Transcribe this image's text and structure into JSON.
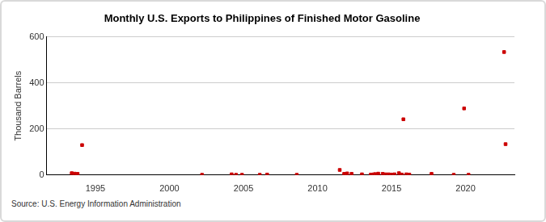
{
  "chart_data": {
    "type": "scatter",
    "title": "Monthly U.S. Exports to Philippines of Finished Motor Gasoline",
    "y_label": "Thousand Barrels",
    "source": "Source: U.S. Energy Information Administration",
    "x": [
      1993.4,
      1993.6,
      1993.8,
      1994.1,
      2002.2,
      2004.2,
      2004.5,
      2004.9,
      2006.1,
      2006.6,
      2008.6,
      2011.5,
      2011.8,
      2012.0,
      2012.3,
      2013.0,
      2013.6,
      2013.8,
      2013.9,
      2014.1,
      2014.4,
      2014.6,
      2014.8,
      2015.0,
      2015.2,
      2015.5,
      2015.7,
      2015.8,
      2016.0,
      2016.2,
      2017.7,
      2019.2,
      2019.9,
      2020.2,
      2022.6,
      2022.7
    ],
    "values": [
      8,
      6,
      5,
      130,
      1,
      3,
      1,
      1,
      1,
      2,
      1,
      22,
      5,
      7,
      5,
      3,
      2,
      3,
      4,
      6,
      5,
      3,
      3,
      2,
      3,
      8,
      2,
      242,
      3,
      2,
      5,
      1,
      289,
      1,
      534,
      134
    ],
    "color": "#cc0000",
    "marker": "square",
    "xlim": [
      1991.7,
      2023.3
    ],
    "xticks": [
      1995,
      2000,
      2005,
      2010,
      2015,
      2020
    ],
    "ylim": [
      0,
      600
    ],
    "yticks": [
      0,
      200,
      400,
      600
    ],
    "grid": true
  }
}
